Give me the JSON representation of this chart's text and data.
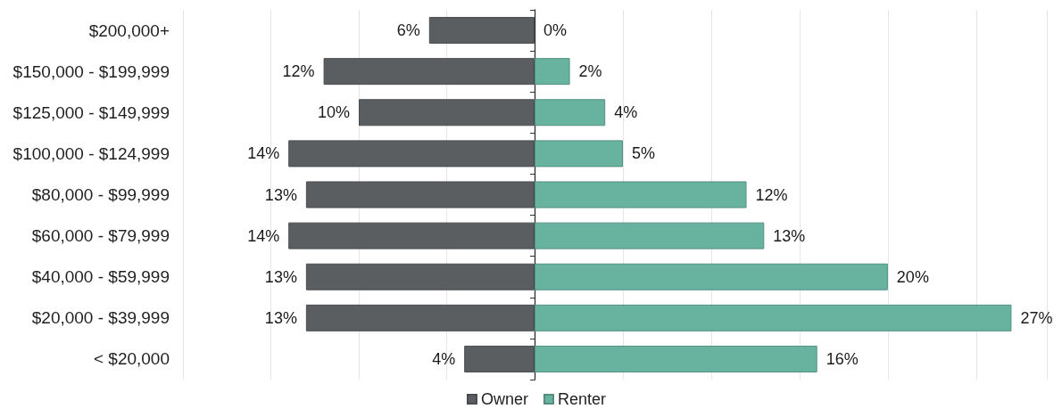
{
  "chart_data": [
    {
      "type": "bar",
      "orientation": "horizontal",
      "categories": [
        "$200,000+",
        "$150,000 - $199,999",
        "$125,000 - $149,999",
        "$100,000 - $124,999",
        "$80,000 - $99,999",
        "$60,000 - $79,999",
        "$40,000 - $59,999",
        "$20,000 - $39,999",
        "< $20,000"
      ],
      "series": [
        {
          "name": "Owner",
          "color": "#5b5e61",
          "values": [
            6,
            12,
            10,
            14,
            13,
            14,
            13,
            13,
            4
          ],
          "value_labels": [
            "6%",
            "12%",
            "10%",
            "14%",
            "13%",
            "14%",
            "13%",
            "13%",
            "4%"
          ]
        }
      ],
      "xlim": [
        20,
        0
      ],
      "grid": "x",
      "legend": "bottom right",
      "tick_labels": "y"
    },
    {
      "type": "bar",
      "orientation": "horizontal",
      "categories": [
        null,
        null,
        null,
        null,
        null,
        null,
        null,
        null,
        null
      ],
      "series": [
        {
          "name": "Renter",
          "color": "#67b3a0",
          "values": [
            0,
            2,
            4,
            5,
            12,
            13,
            20,
            27,
            16
          ],
          "value_labels": [
            "0%",
            "2%",
            "4%",
            "5%",
            "12%",
            "13%",
            "20%",
            "27%",
            "16%"
          ]
        }
      ],
      "xlim": [
        0,
        29
      ],
      "grid": "x",
      "legend": "bottom left",
      "tick_labels": false
    }
  ]
}
